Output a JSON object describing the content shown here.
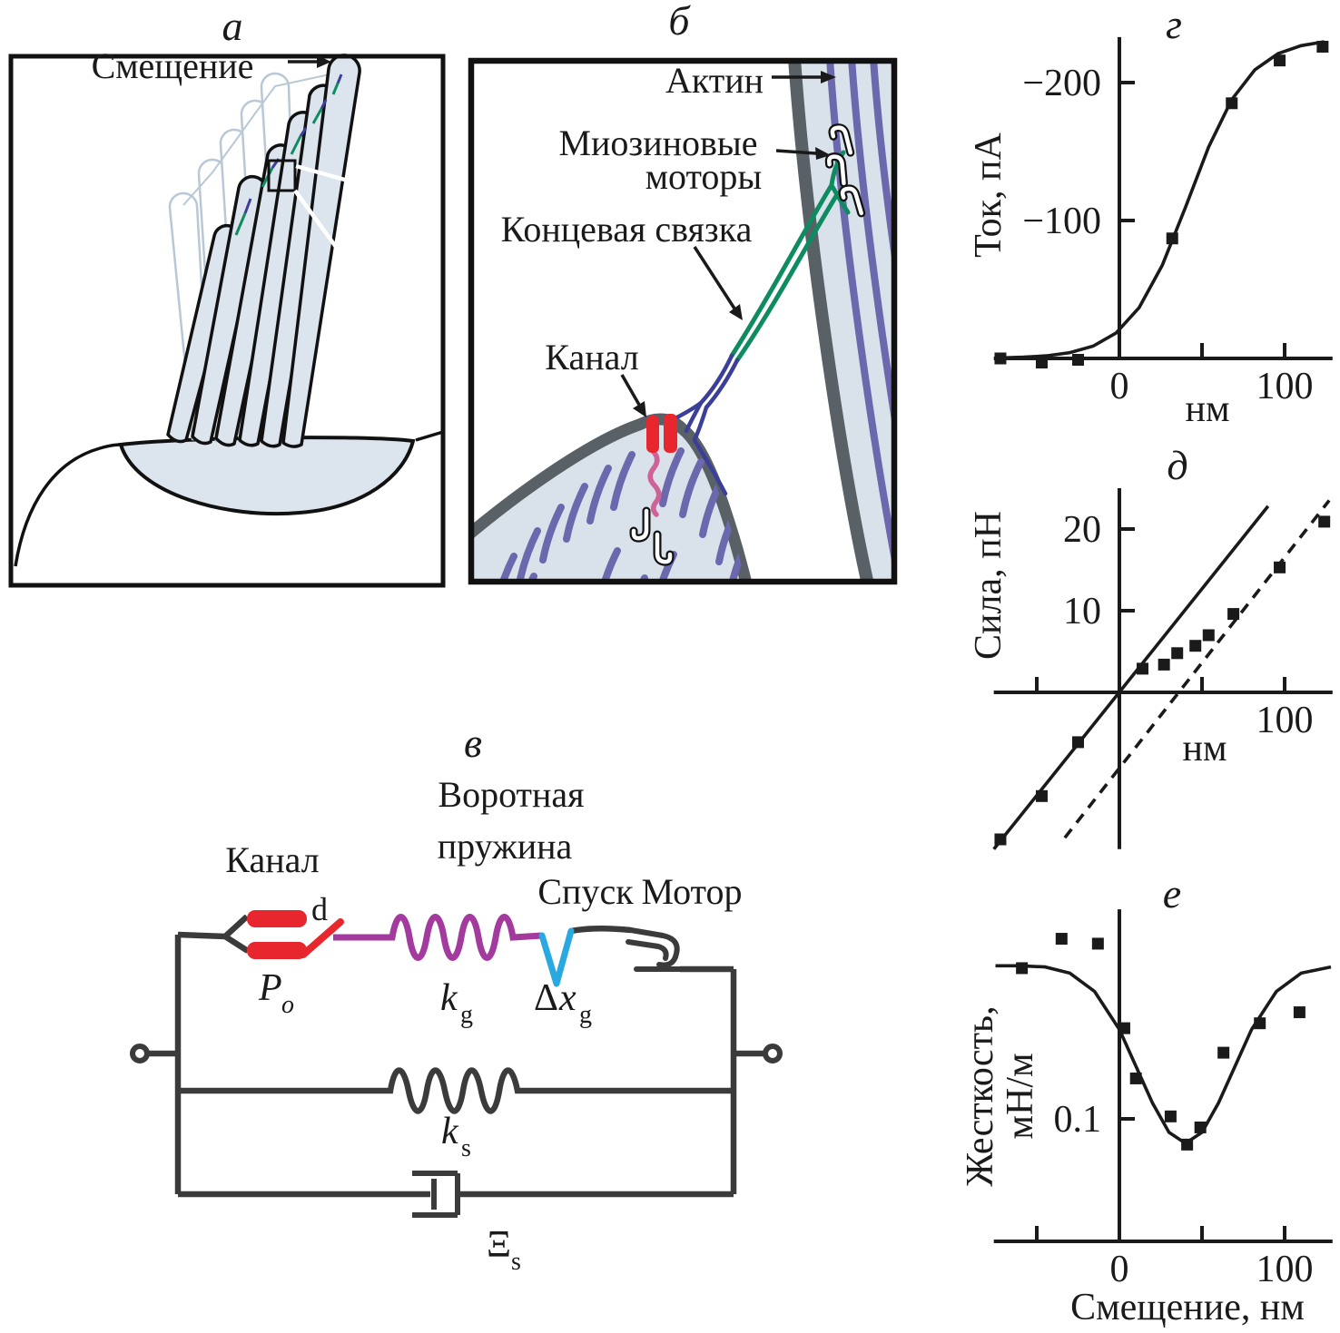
{
  "figure": {
    "description_labels": {
      "displacement": "Смещение",
      "actin": "Актин",
      "myosin_line1": "Миозиновые",
      "myosin_line2": "моторы",
      "tip_link": "Концевая связка",
      "channel": "Канал"
    }
  },
  "panels": {
    "a": {
      "title": "а",
      "displacement_label": "Смещение"
    },
    "b": {
      "title": "б",
      "actin_label": "Актин",
      "myosin_label_line1": "Миозиновые",
      "myosin_label_line2": "моторы",
      "tip_link_label": "Концевая связка",
      "channel_label": "Канал"
    },
    "v": {
      "title": "в",
      "gating_spring_label_line1": "Воротная",
      "gating_spring_label_line2": "пружина",
      "channel_label": "Канал",
      "release_label": "Спуск",
      "motor_label": "Мотор",
      "gate_label": "d",
      "open_probability": {
        "base": "P",
        "sub": "o"
      },
      "gating_stiffness": {
        "base": "k",
        "sub": "g"
      },
      "gate_swing": {
        "delta": "Δ",
        "base": "x",
        "sub": "g"
      },
      "stereocilia_stiffness": {
        "base": "k",
        "sub": "s"
      },
      "drag_coefficient": {
        "base": "Ξ",
        "sub": "s"
      }
    },
    "g": {
      "title": "г"
    },
    "d": {
      "title": "д"
    },
    "e": {
      "title": "е"
    }
  },
  "colors": {
    "ink": "#1a1a1a",
    "wire": "#3b3b3b",
    "red": "#e8262d",
    "magenta": "#a33a9e",
    "cyan": "#2aa9e1",
    "green": "#0f8b61",
    "navy": "#3c3f99",
    "purple": "#6b68ad",
    "light_blue": "#dce4ee",
    "panel_blue": "#d9e1ea",
    "gray_outline": "#596066",
    "ghost": "#b9c8d6"
  },
  "chart_data": [
    {
      "id": "current_vs_displacement",
      "type": "scatter",
      "panel": "г",
      "xlabel": "нм",
      "ylabel": [
        "Ток, пА"
      ],
      "xlim": [
        -76,
        129
      ],
      "ylim": [
        0,
        -233
      ],
      "x_ticks": [
        50,
        100
      ],
      "x_tick_labels": [
        {
          "v": 0,
          "text": "0"
        },
        {
          "v": 100,
          "text": "100"
        }
      ],
      "y_ticks": [
        -100,
        -200
      ],
      "y_tick_labels": [
        {
          "v": -200,
          "text": "−200"
        },
        {
          "v": -100,
          "text": "−100"
        }
      ],
      "points": [
        [
          -72,
          0
        ],
        [
          -47,
          3
        ],
        [
          -25,
          1
        ],
        [
          32,
          -87
        ],
        [
          68,
          -185
        ],
        [
          97,
          -216
        ],
        [
          123,
          -226
        ]
      ],
      "curves": [
        {
          "name": "sigmoid-fit",
          "points": [
            [
              -72,
              -0.4
            ],
            [
              -58,
              -0.9
            ],
            [
              -44,
              -1.9
            ],
            [
              -30,
              -4.2
            ],
            [
              -16,
              -8.9
            ],
            [
              -2,
              -18.5
            ],
            [
              12,
              -36.9
            ],
            [
              26,
              -67.6
            ],
            [
              40,
              -109.6
            ],
            [
              54,
              -153.3
            ],
            [
              68,
              -187.7
            ],
            [
              82,
              -209.3
            ],
            [
              96,
              -221.0
            ],
            [
              110,
              -226.8
            ],
            [
              124,
              -229.6
            ]
          ]
        }
      ]
    },
    {
      "id": "force_vs_displacement",
      "type": "scatter",
      "panel": "д",
      "xlabel": "нм",
      "ylabel": [
        "Сила, пН"
      ],
      "xlim": [
        -76,
        129
      ],
      "ylim": [
        -19.2,
        25
      ],
      "x_ticks": [
        -50,
        50,
        100
      ],
      "x_tick_labels": [
        {
          "v": 100,
          "text": "100"
        }
      ],
      "y_ticks": [
        10,
        20
      ],
      "y_tick_labels": [
        {
          "v": 10,
          "text": "10"
        },
        {
          "v": 20,
          "text": "20"
        }
      ],
      "points": [
        [
          -72,
          -18
        ],
        [
          -47,
          -12.7
        ],
        [
          -25,
          -6.1
        ],
        [
          14,
          2.9
        ],
        [
          27,
          3.4
        ],
        [
          35,
          4.8
        ],
        [
          46,
          5.7
        ],
        [
          54,
          7
        ],
        [
          69,
          9.6
        ],
        [
          97,
          15.3
        ],
        [
          124,
          20.9
        ]
      ],
      "curves": [
        {
          "name": "stiffness-line",
          "points": [
            [
              -76,
              -19.2
            ],
            [
              90,
              22.8
            ]
          ]
        },
        {
          "name": "shifted-line",
          "points": [
            [
              -33,
              -17.8
            ],
            [
              127,
              23.5
            ]
          ],
          "dashed": true
        }
      ]
    },
    {
      "id": "stiffness_vs_displacement",
      "type": "scatter",
      "panel": "е",
      "xlabel": "Смещение, нм",
      "ylabel": [
        "Жесткость,",
        "мН/м"
      ],
      "xlim": [
        -76,
        129
      ],
      "ylim": [
        0,
        0.271
      ],
      "x_ticks": [
        -50,
        50,
        100
      ],
      "x_tick_labels": [
        {
          "v": 0,
          "text": "0"
        },
        {
          "v": 100,
          "text": "100"
        }
      ],
      "y_ticks": [
        0.1
      ],
      "y_tick_labels": [
        {
          "v": 0.1,
          "text": "0.1"
        }
      ],
      "points": [
        [
          -59,
          0.223
        ],
        [
          -35,
          0.247
        ],
        [
          -13,
          0.243
        ],
        [
          3,
          0.174
        ],
        [
          10,
          0.133
        ],
        [
          31,
          0.102
        ],
        [
          41,
          0.079
        ],
        [
          49,
          0.093
        ],
        [
          63,
          0.154
        ],
        [
          85,
          0.178
        ],
        [
          109,
          0.187
        ]
      ],
      "curves": [
        {
          "name": "gating-compliance-dip",
          "points": [
            [
              -75,
              0.225
            ],
            [
              -60,
              0.225
            ],
            [
              -45,
              0.224
            ],
            [
              -30,
              0.219
            ],
            [
              -15,
              0.204
            ],
            [
              0,
              0.173
            ],
            [
              10,
              0.143
            ],
            [
              20,
              0.113
            ],
            [
              30,
              0.089
            ],
            [
              40,
              0.08
            ],
            [
              50,
              0.089
            ],
            [
              60,
              0.113
            ],
            [
              70,
              0.143
            ],
            [
              80,
              0.173
            ],
            [
              95,
              0.204
            ],
            [
              110,
              0.219
            ],
            [
              128,
              0.224
            ]
          ]
        }
      ]
    }
  ]
}
